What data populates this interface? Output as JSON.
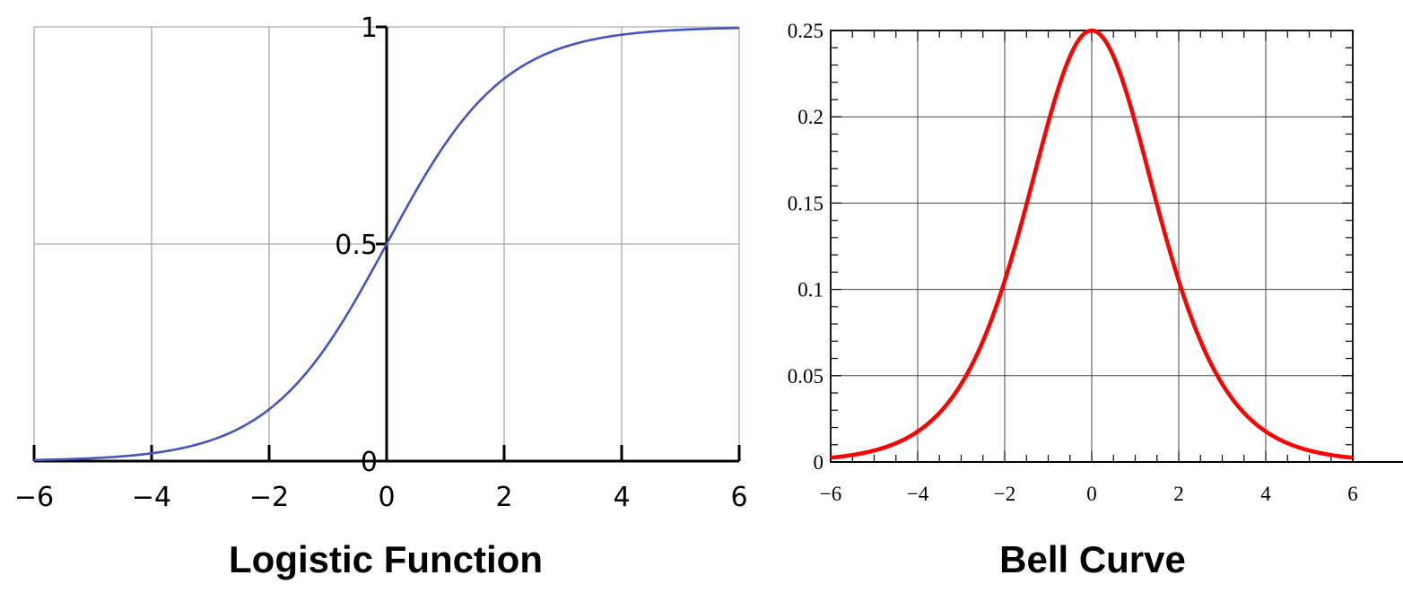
{
  "chart_data": [
    {
      "type": "line",
      "title": "Logistic Function",
      "function": "logistic",
      "xlim": [
        -6,
        6
      ],
      "ylim": [
        0,
        1
      ],
      "x_ticks": [
        -6,
        -4,
        -2,
        0,
        2,
        4,
        6
      ],
      "x_tick_labels": [
        "−6",
        "−4",
        "−2",
        "0",
        "2",
        "4",
        "6"
      ],
      "y_ticks": [
        0,
        0.5,
        1
      ],
      "y_tick_labels": [
        "0",
        "0.5",
        "1"
      ],
      "grid": true,
      "line_color": "#4455bb",
      "grid_color": "#aaaaaa",
      "series": [
        {
          "x": [
            -6,
            -5,
            -4,
            -3,
            -2,
            -1.5,
            -1,
            -0.5,
            0,
            0.5,
            1,
            1.5,
            2,
            3,
            4,
            5,
            6
          ],
          "y": [
            0.0025,
            0.0067,
            0.018,
            0.047,
            0.119,
            0.182,
            0.269,
            0.378,
            0.5,
            0.622,
            0.731,
            0.818,
            0.881,
            0.953,
            0.982,
            0.993,
            0.9975
          ]
        }
      ]
    },
    {
      "type": "line",
      "title": "Bell Curve",
      "function": "logistic-density",
      "xlim": [
        -6,
        6
      ],
      "ylim": [
        0,
        0.25
      ],
      "x_ticks": [
        -6,
        -4,
        -2,
        0,
        2,
        4,
        6
      ],
      "x_tick_labels": [
        "−6",
        "−4",
        "−2",
        "0",
        "2",
        "4",
        "6"
      ],
      "y_ticks": [
        0,
        0.05,
        0.1,
        0.15,
        0.2,
        0.25
      ],
      "y_tick_labels": [
        "0",
        "0.05",
        "0.1",
        "0.15",
        "0.2",
        "0.25"
      ],
      "grid": true,
      "line_color": "#ff0000",
      "grid_color": "#444444",
      "series": [
        {
          "x": [
            -6,
            -5,
            -4,
            -3,
            -2,
            -1.5,
            -1,
            -0.5,
            0,
            0.5,
            1,
            1.5,
            2,
            3,
            4,
            5,
            6
          ],
          "y": [
            0.0025,
            0.0066,
            0.0177,
            0.0452,
            0.105,
            0.149,
            0.197,
            0.235,
            0.25,
            0.235,
            0.197,
            0.149,
            0.105,
            0.0452,
            0.0177,
            0.0066,
            0.0025
          ]
        }
      ]
    }
  ]
}
